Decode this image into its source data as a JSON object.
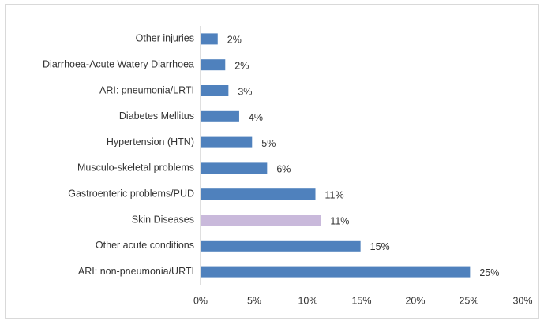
{
  "chart_data": {
    "type": "hbar",
    "categories": [
      "Other injuries",
      "Diarrhoea-Acute Watery Diarrhoea",
      "ARI: pneumonia/LRTI",
      "Diabetes Mellitus",
      "Hypertension (HTN)",
      "Musculo-skeletal problems",
      "Gastroenteric problems/PUD",
      "Skin Diseases",
      "Other acute conditions",
      "ARI: non-pneumonia/URTI"
    ],
    "values": [
      1.6,
      2.3,
      2.6,
      3.6,
      4.8,
      6.2,
      10.7,
      11.2,
      14.9,
      25.1
    ],
    "value_labels": [
      "2%",
      "2%",
      "3%",
      "4%",
      "5%",
      "6%",
      "11%",
      "11%",
      "15%",
      "25%"
    ],
    "colors": [
      "#4f81bd",
      "#4f81bd",
      "#4f81bd",
      "#4f81bd",
      "#4f81bd",
      "#4f81bd",
      "#4f81bd",
      "#c9b9db",
      "#4f81bd",
      "#4f81bd"
    ],
    "xlim": [
      0,
      30
    ],
    "xticks": [
      {
        "value": 0,
        "label": "0%"
      },
      {
        "value": 5,
        "label": "5%"
      },
      {
        "value": 10,
        "label": "10%"
      },
      {
        "value": 15,
        "label": "15%"
      },
      {
        "value": 20,
        "label": "20%"
      },
      {
        "value": 25,
        "label": "25%"
      },
      {
        "value": 30,
        "label": "30%"
      }
    ],
    "grid": false
  }
}
